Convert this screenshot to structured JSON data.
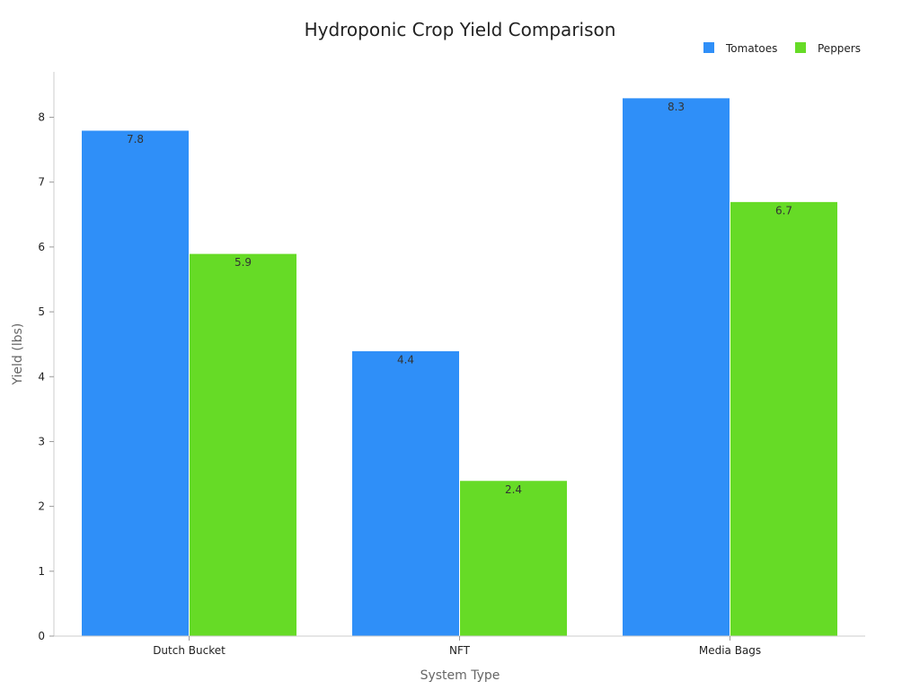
{
  "chart_data": {
    "type": "bar",
    "title": "Hydroponic Crop Yield Comparison",
    "xlabel": "System Type",
    "ylabel": "Yield (lbs)",
    "categories": [
      "Dutch Bucket",
      "NFT",
      "Media Bags"
    ],
    "series": [
      {
        "name": "Tomatoes",
        "color": "#2f8ff8",
        "values": [
          7.8,
          4.4,
          8.3
        ]
      },
      {
        "name": "Peppers",
        "color": "#66db26",
        "values": [
          5.9,
          2.4,
          6.7
        ]
      }
    ],
    "ylim": [
      0,
      8.7
    ],
    "yticks": [
      0,
      1,
      2,
      3,
      4,
      5,
      6,
      7,
      8
    ],
    "legend_position": "top-right",
    "grid": false
  }
}
